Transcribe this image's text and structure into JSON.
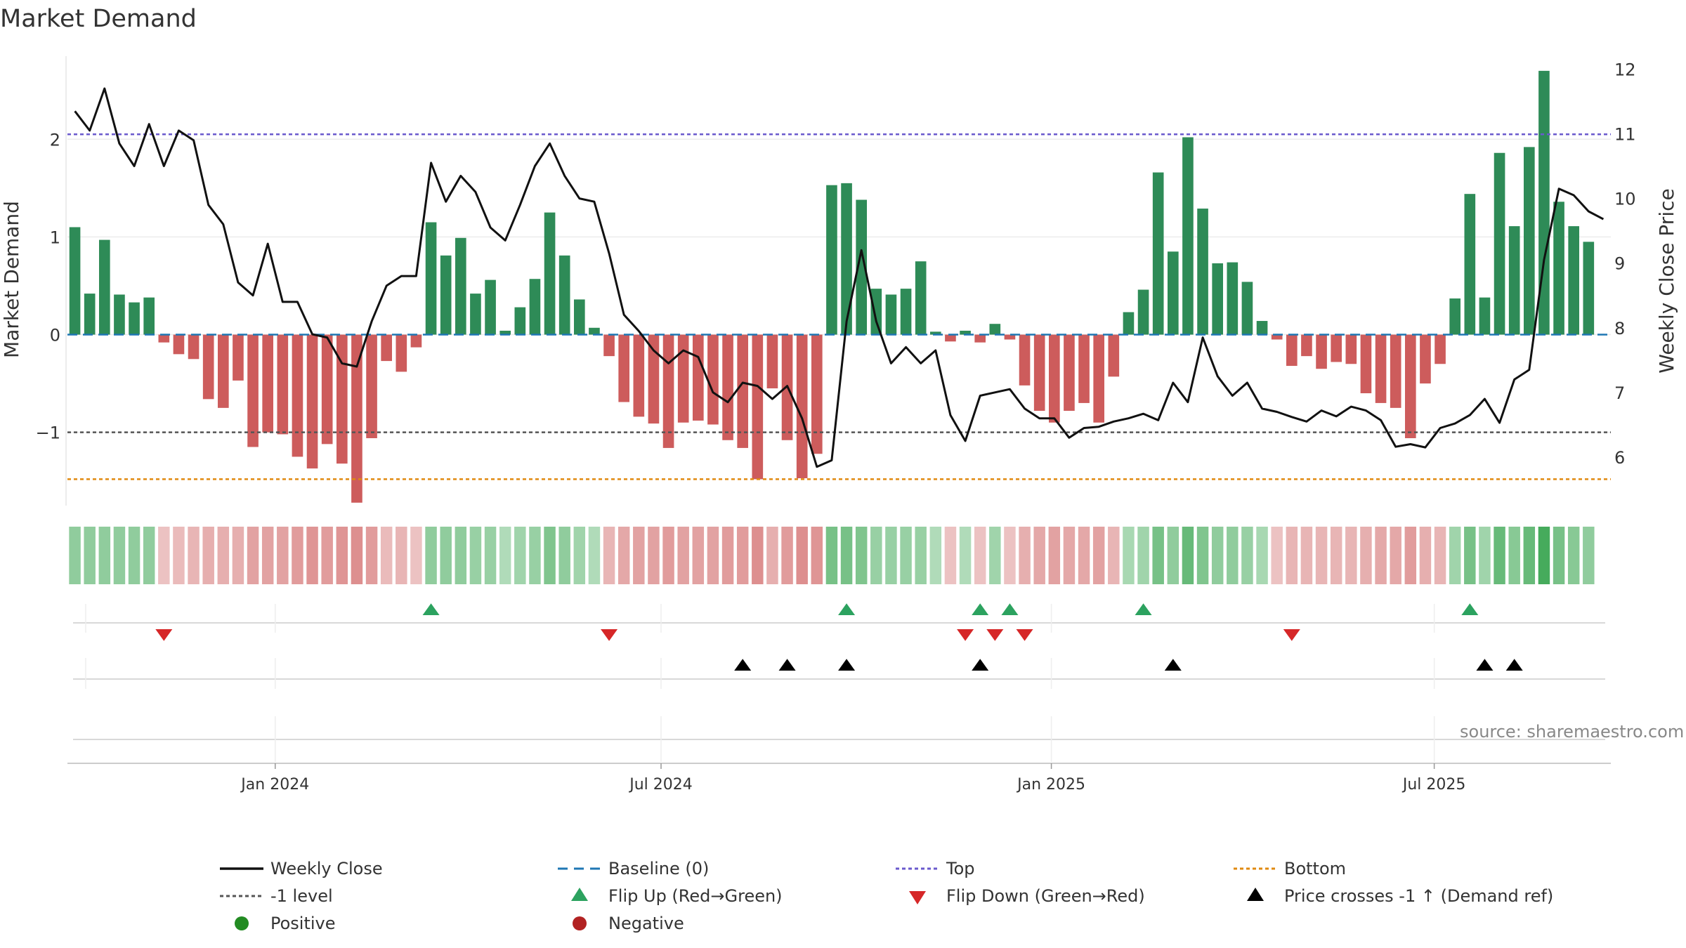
{
  "chart_data": {
    "type": "bar",
    "title": "Market Demand",
    "ylabel": "Market Demand",
    "y2label": "Weekly Close Price",
    "ylim": [
      -1.75,
      2.85
    ],
    "y2lim": [
      5.25,
      12.2
    ],
    "yticks": [
      {
        "v": 2,
        "label": "2"
      },
      {
        "v": 1,
        "label": "1"
      },
      {
        "v": 0,
        "label": "0"
      },
      {
        "v": -1,
        "label": "−1"
      }
    ],
    "y2ticks": [
      {
        "v": 12,
        "label": "12"
      },
      {
        "v": 11,
        "label": "11"
      },
      {
        "v": 10,
        "label": "10"
      },
      {
        "v": 9,
        "label": "9"
      },
      {
        "v": 8,
        "label": "8"
      },
      {
        "v": 7,
        "label": "7"
      },
      {
        "v": 6,
        "label": "6"
      }
    ],
    "xticks": [
      {
        "week": 14,
        "label": "Jan 2024"
      },
      {
        "week": 40,
        "label": "Jul 2024"
      },
      {
        "week": 66.3,
        "label": "Jan 2025"
      },
      {
        "week": 92.1,
        "label": "Jul 2025"
      }
    ],
    "week_count": 104,
    "demand": [
      1.1,
      0.42,
      0.97,
      0.41,
      0.33,
      0.38,
      -0.08,
      -0.2,
      -0.25,
      -0.66,
      -0.75,
      -0.47,
      -1.15,
      -1.0,
      -1.02,
      -1.25,
      -1.37,
      -1.12,
      -1.32,
      -1.72,
      -1.06,
      -0.27,
      -0.38,
      -0.13,
      1.15,
      0.81,
      0.99,
      0.42,
      0.56,
      0.04,
      0.28,
      0.57,
      1.25,
      0.81,
      0.36,
      0.07,
      -0.22,
      -0.69,
      -0.84,
      -0.91,
      -1.16,
      -0.9,
      -0.88,
      -0.92,
      -1.08,
      -1.16,
      -1.48,
      -0.55,
      -1.08,
      -1.47,
      -1.22,
      1.53,
      1.55,
      1.38,
      0.47,
      0.41,
      0.47,
      0.75,
      0.03,
      -0.07,
      0.04,
      -0.08,
      0.11,
      -0.05,
      -0.52,
      -0.78,
      -0.9,
      -0.78,
      -0.7,
      -0.9,
      -0.43,
      0.23,
      0.46,
      1.66,
      0.85,
      2.02,
      1.29,
      0.73,
      0.74,
      0.54,
      0.14,
      -0.05,
      -0.32,
      -0.22,
      -0.35,
      -0.28,
      -0.3,
      -0.6,
      -0.7,
      -0.75,
      -1.06,
      -0.5,
      -0.3,
      0.37,
      1.44,
      0.38,
      1.86,
      1.11,
      1.92,
      2.7,
      1.36,
      1.11,
      0.95
    ],
    "price": [
      11.35,
      11.05,
      11.7,
      10.85,
      10.5,
      11.15,
      10.5,
      11.05,
      10.9,
      9.9,
      9.6,
      8.7,
      8.5,
      9.3,
      8.4,
      8.4,
      7.9,
      7.85,
      7.45,
      7.4,
      8.1,
      8.65,
      8.8,
      8.8,
      10.55,
      9.95,
      10.35,
      10.1,
      9.55,
      9.35,
      9.9,
      10.5,
      10.85,
      10.35,
      10.0,
      9.95,
      9.15,
      8.2,
      7.95,
      7.65,
      7.45,
      7.65,
      7.55,
      7.0,
      6.85,
      7.15,
      7.1,
      6.9,
      7.1,
      6.6,
      5.85,
      5.95,
      8.1,
      9.2,
      8.1,
      7.45,
      7.7,
      7.45,
      7.65,
      6.65,
      6.25,
      6.95,
      7.0,
      7.05,
      6.75,
      6.6,
      6.6,
      6.3,
      6.45,
      6.47,
      6.55,
      6.6,
      6.67,
      6.57,
      7.15,
      6.85,
      7.85,
      7.25,
      6.95,
      7.15,
      6.75,
      6.7,
      6.62,
      6.55,
      6.72,
      6.63,
      6.78,
      6.72,
      6.57,
      6.16,
      6.2,
      6.15,
      6.45,
      6.52,
      6.65,
      6.9,
      6.53,
      7.2,
      7.35,
      9.05,
      10.15,
      10.05,
      9.8,
      9.68
    ],
    "heat_levels": [
      0.4,
      0.4,
      0.4,
      0.4,
      0.4,
      0.4,
      0.2,
      0.25,
      0.3,
      0.35,
      0.35,
      0.35,
      0.45,
      0.45,
      0.45,
      0.5,
      0.55,
      0.5,
      0.55,
      0.6,
      0.5,
      0.25,
      0.3,
      0.2,
      0.4,
      0.4,
      0.4,
      0.35,
      0.35,
      0.2,
      0.3,
      0.35,
      0.5,
      0.4,
      0.3,
      0.2,
      0.3,
      0.4,
      0.45,
      0.45,
      0.5,
      0.45,
      0.45,
      0.45,
      0.5,
      0.5,
      0.6,
      0.35,
      0.5,
      0.6,
      0.55,
      0.55,
      0.55,
      0.5,
      0.35,
      0.35,
      0.35,
      0.35,
      0.2,
      0.2,
      0.2,
      0.2,
      0.3,
      0.2,
      0.35,
      0.4,
      0.45,
      0.4,
      0.4,
      0.45,
      0.3,
      0.25,
      0.3,
      0.55,
      0.4,
      0.65,
      0.5,
      0.4,
      0.4,
      0.35,
      0.25,
      0.2,
      0.3,
      0.3,
      0.3,
      0.3,
      0.3,
      0.35,
      0.4,
      0.4,
      0.5,
      0.35,
      0.3,
      0.3,
      0.55,
      0.3,
      0.65,
      0.45,
      0.65,
      0.85,
      0.55,
      0.45,
      0.4
    ],
    "flip_up_weeks": [
      24,
      52,
      61,
      63,
      72,
      94
    ],
    "flip_down_weeks": [
      6,
      36,
      60,
      62,
      64,
      82
    ],
    "price_cross_weeks": [
      45,
      48,
      52,
      61,
      74,
      95,
      97
    ],
    "ref_lines": {
      "baseline": 0,
      "top": 2.05,
      "minus_one": -1.0,
      "bottom": -1.48
    },
    "legend": [
      {
        "key": "weekly_close",
        "label": "Weekly Close",
        "marker": "line",
        "color": "#111111"
      },
      {
        "key": "baseline",
        "label": "Baseline (0)",
        "marker": "dash",
        "color": "#1f77b4"
      },
      {
        "key": "top",
        "label": "Top",
        "marker": "dot",
        "color": "#6a5acd"
      },
      {
        "key": "bottom",
        "label": "Bottom",
        "marker": "dot",
        "color": "#e08a10"
      },
      {
        "key": "minus_one",
        "label": "-1 level",
        "marker": "dot",
        "color": "#555555"
      },
      {
        "key": "flip_up",
        "label": "Flip Up (Red→Green)",
        "marker": "tri-up",
        "color": "#2ca25f"
      },
      {
        "key": "flip_down",
        "label": "Flip Down (Green→Red)",
        "marker": "tri-down",
        "color": "#d62728"
      },
      {
        "key": "price_cross",
        "label": "Price crosses -1 ↑ (Demand ref)",
        "marker": "tri-up",
        "color": "#000000"
      },
      {
        "key": "positive",
        "label": "Positive",
        "marker": "circle",
        "color": "#228b22"
      },
      {
        "key": "negative",
        "label": "Negative",
        "marker": "circle",
        "color": "#b22222"
      }
    ],
    "legend_position": "bottom",
    "colors": {
      "positive_bar": "#2e8b57",
      "negative_bar": "#cd5c5c",
      "price_line": "#111111",
      "grid": "#ececec"
    }
  },
  "source": "source: sharemaestro.com"
}
